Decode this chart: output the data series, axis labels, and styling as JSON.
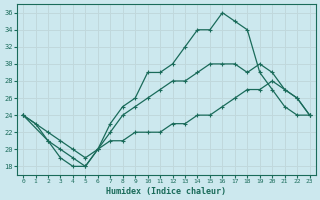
{
  "background_color": "#cce8ee",
  "grid_color": "#c0d8dc",
  "line_color": "#1a6b5a",
  "xlabel": "Humidex (Indice chaleur)",
  "xlim": [
    -0.5,
    23.5
  ],
  "ylim": [
    17,
    37
  ],
  "yticks": [
    18,
    20,
    22,
    24,
    26,
    28,
    30,
    32,
    34,
    36
  ],
  "xticks": [
    0,
    1,
    2,
    3,
    4,
    5,
    6,
    7,
    8,
    9,
    10,
    11,
    12,
    13,
    14,
    15,
    16,
    17,
    18,
    19,
    20,
    21,
    22,
    23
  ],
  "line1_x": [
    0,
    1,
    2,
    3,
    4,
    5,
    6,
    7,
    8,
    9,
    10,
    11,
    12,
    13,
    14,
    15,
    16,
    17,
    18,
    19,
    20,
    21,
    22,
    23
  ],
  "line1_y": [
    24,
    23,
    21,
    19,
    18,
    18,
    20,
    23,
    25,
    26,
    29,
    29,
    30,
    32,
    34,
    34,
    36,
    35,
    34,
    29,
    27,
    25,
    24,
    24
  ],
  "line2_x": [
    0,
    2,
    3,
    4,
    5,
    6,
    7,
    8,
    9,
    10,
    11,
    12,
    13,
    14,
    15,
    16,
    17,
    18,
    19,
    20,
    21,
    22,
    23
  ],
  "line2_y": [
    24,
    21,
    20,
    19,
    18,
    20,
    22,
    24,
    25,
    26,
    27,
    28,
    28,
    29,
    30,
    30,
    30,
    29,
    30,
    29,
    27,
    26,
    24
  ],
  "line3_x": [
    0,
    2,
    3,
    4,
    5,
    6,
    7,
    8,
    9,
    10,
    11,
    12,
    13,
    14,
    15,
    16,
    17,
    18,
    19,
    20,
    21,
    22,
    23
  ],
  "line3_y": [
    24,
    22,
    21,
    20,
    19,
    20,
    21,
    21,
    22,
    22,
    22,
    23,
    23,
    24,
    24,
    25,
    26,
    27,
    27,
    28,
    27,
    26,
    24
  ]
}
